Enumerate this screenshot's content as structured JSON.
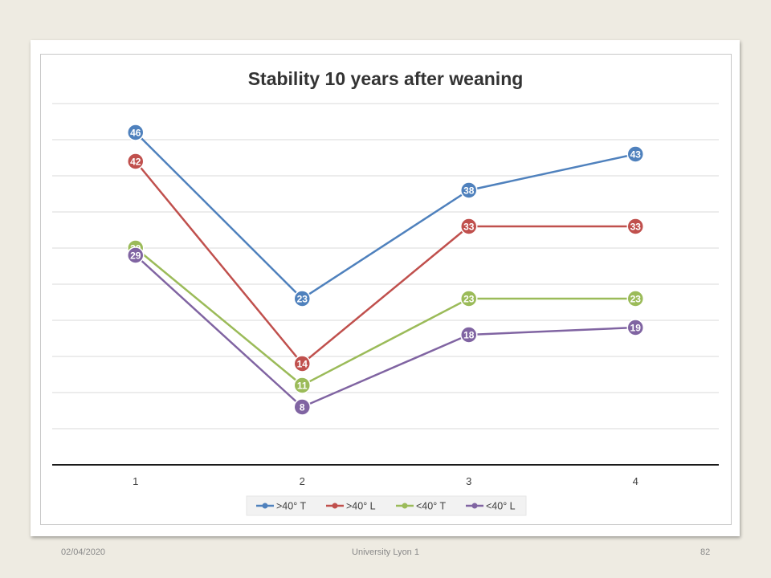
{
  "footer": {
    "date": "02/04/2020",
    "center": "University Lyon 1",
    "page": "82"
  },
  "chart_data": {
    "type": "line",
    "title": "Stability 10 years after weaning",
    "xlabel": "",
    "ylabel": "",
    "categories": [
      "1",
      "2",
      "3",
      "4"
    ],
    "ylim": [
      0,
      50
    ],
    "gridlines": true,
    "legend_position": "bottom",
    "data_labels": true,
    "series": [
      {
        "name": ">40° T",
        "color": "#4f81bd",
        "values": [
          46,
          23,
          38,
          43
        ]
      },
      {
        "name": ">40° L",
        "color": "#c0504d",
        "values": [
          42,
          14,
          33,
          33
        ]
      },
      {
        "name": "<40° T",
        "color": "#9bbb59",
        "values": [
          30,
          11,
          23,
          23
        ]
      },
      {
        "name": "<40° L",
        "color": "#8064a2",
        "values": [
          29,
          8,
          18,
          19
        ]
      }
    ]
  }
}
